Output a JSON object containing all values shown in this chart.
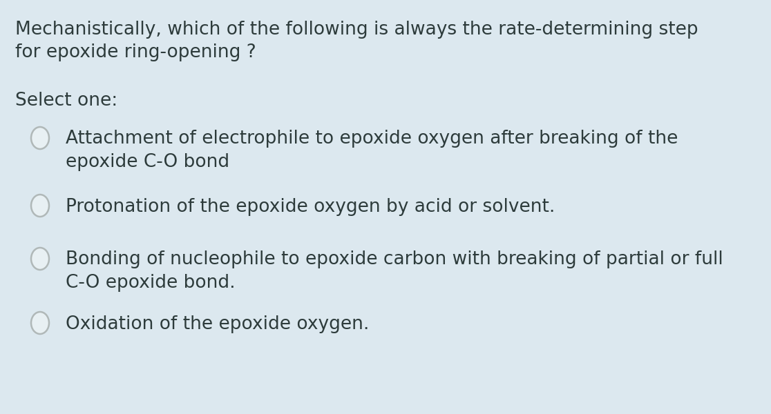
{
  "background_color": "#dce8ef",
  "question_line1": "Mechanistically, which of the following is always the rate-determining step",
  "question_line2": "for epoxide ring-opening ?",
  "select_label": "Select one:",
  "options": [
    [
      "Attachment of electrophile to epoxide oxygen after breaking of the",
      "epoxide C-O bond"
    ],
    [
      "Protonation of the epoxide oxygen by acid or solvent."
    ],
    [
      "Bonding of nucleophile to epoxide carbon with breaking of partial or full",
      "C-O epoxide bond."
    ],
    [
      "Oxidation of the epoxide oxygen."
    ]
  ],
  "text_color": "#2d3b3b",
  "radio_edge_color": "#b0b8b8",
  "radio_fill_color": "#e8f0f3",
  "question_fontsize": 19,
  "select_fontsize": 19,
  "option_fontsize": 19,
  "fig_width": 11.16,
  "fig_height": 6.0,
  "dpi": 100
}
